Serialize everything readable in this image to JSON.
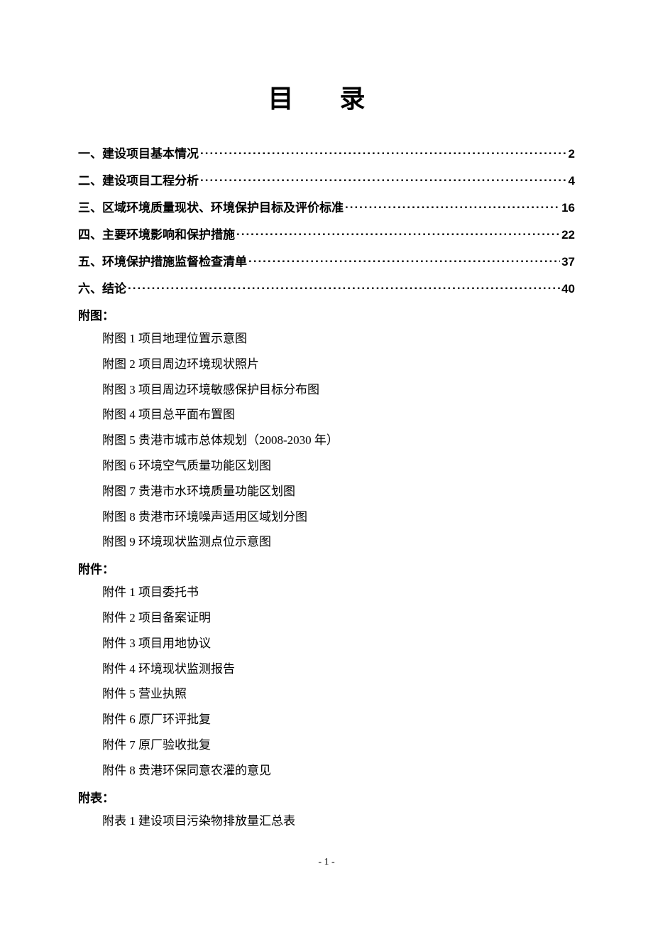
{
  "title": "目 录",
  "toc": [
    {
      "label": "一、建设项目基本情况",
      "page": "2"
    },
    {
      "label": "二、建设项目工程分析",
      "page": "4"
    },
    {
      "label": "三、区域环境质量现状、环境保护目标及评价标准",
      "page": "16"
    },
    {
      "label": "四、主要环境影响和保护措施",
      "page": "22"
    },
    {
      "label": "五、环境保护措施监督检查清单",
      "page": "37"
    },
    {
      "label": "六、结论",
      "page": "40"
    }
  ],
  "sections": [
    {
      "heading": "附图：",
      "items": [
        "附图 1  项目地理位置示意图",
        "附图 2  项目周边环境现状照片",
        "附图 3  项目周边环境敏感保护目标分布图",
        "附图 4  项目总平面布置图",
        "附图 5  贵港市城市总体规划（2008-2030 年）",
        "附图 6  环境空气质量功能区划图",
        "附图 7  贵港市水环境质量功能区划图",
        "附图 8  贵港市环境噪声适用区域划分图",
        "附图 9  环境现状监测点位示意图"
      ]
    },
    {
      "heading": "附件：",
      "items": [
        "附件 1  项目委托书",
        "附件 2  项目备案证明",
        "附件 3 项目用地协议",
        "附件 4  环境现状监测报告",
        "附件 5  营业执照",
        "附件 6  原厂环评批复",
        "附件 7  原厂验收批复",
        "附件 8  贵港环保同意农灌的意见"
      ]
    },
    {
      "heading": "附表：",
      "items": [
        "附表 1  建设项目污染物排放量汇总表"
      ]
    }
  ],
  "page_number": "- 1 -",
  "colors": {
    "background": "#ffffff",
    "text": "#000000"
  },
  "typography": {
    "title_fontsize": 36,
    "body_fontsize": 17,
    "pagenum_fontsize": 14,
    "title_font": "SimSun",
    "toc_font": "SimHei",
    "body_font": "SimSun"
  }
}
